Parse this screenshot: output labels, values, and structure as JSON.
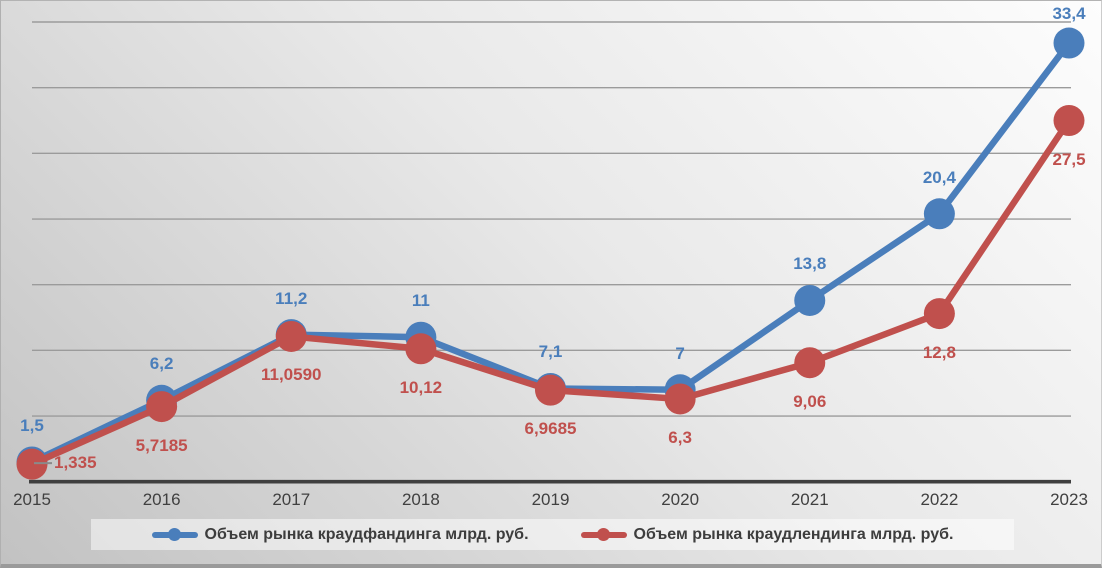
{
  "chart_data": {
    "type": "line",
    "title": "",
    "categories": [
      "2015",
      "2016",
      "2017",
      "2018",
      "2019",
      "2020",
      "2021",
      "2022",
      "2023"
    ],
    "series": [
      {
        "name": "Объем рынка краудфандинга млрд. руб.",
        "color": "#4a7ebb",
        "values": [
          1.5,
          6.2,
          11.2,
          11,
          7.1,
          7,
          13.8,
          20.4,
          33.4
        ],
        "labels": [
          "1,5",
          "6,2",
          "11,2",
          "11",
          "7,1",
          "7",
          "13,8",
          "20,4",
          "33,4"
        ],
        "label_position": "above"
      },
      {
        "name": "Объем рынка краудлендинга млрд. руб.",
        "color": "#c0504d",
        "values": [
          1.335,
          5.7185,
          11.059,
          10.12,
          6.9685,
          6.3,
          9.06,
          12.8,
          27.5
        ],
        "labels": [
          "1,335",
          "5,7185",
          "11,0590",
          "10,12",
          "6,9685",
          "6,3",
          "9,06",
          "12,8",
          "27,5"
        ],
        "label_position": "below",
        "label_position_overrides": {
          "0": "right"
        }
      }
    ],
    "ylim": [
      0,
      35
    ],
    "gridline_step": 5,
    "grid": true,
    "legend_position": "bottom",
    "axis_color": "#3f3f3f",
    "gridline_color": "#9b9b9b",
    "xtick_color": "#404040",
    "leader_line_color": "#8a8a8a"
  },
  "legend": {
    "items": [
      {
        "label": "Объем рынка краудфандинга млрд. руб.",
        "color": "#4a7ebb"
      },
      {
        "label": "Объем рынка краудлендинга млрд. руб.",
        "color": "#c0504d"
      }
    ]
  }
}
